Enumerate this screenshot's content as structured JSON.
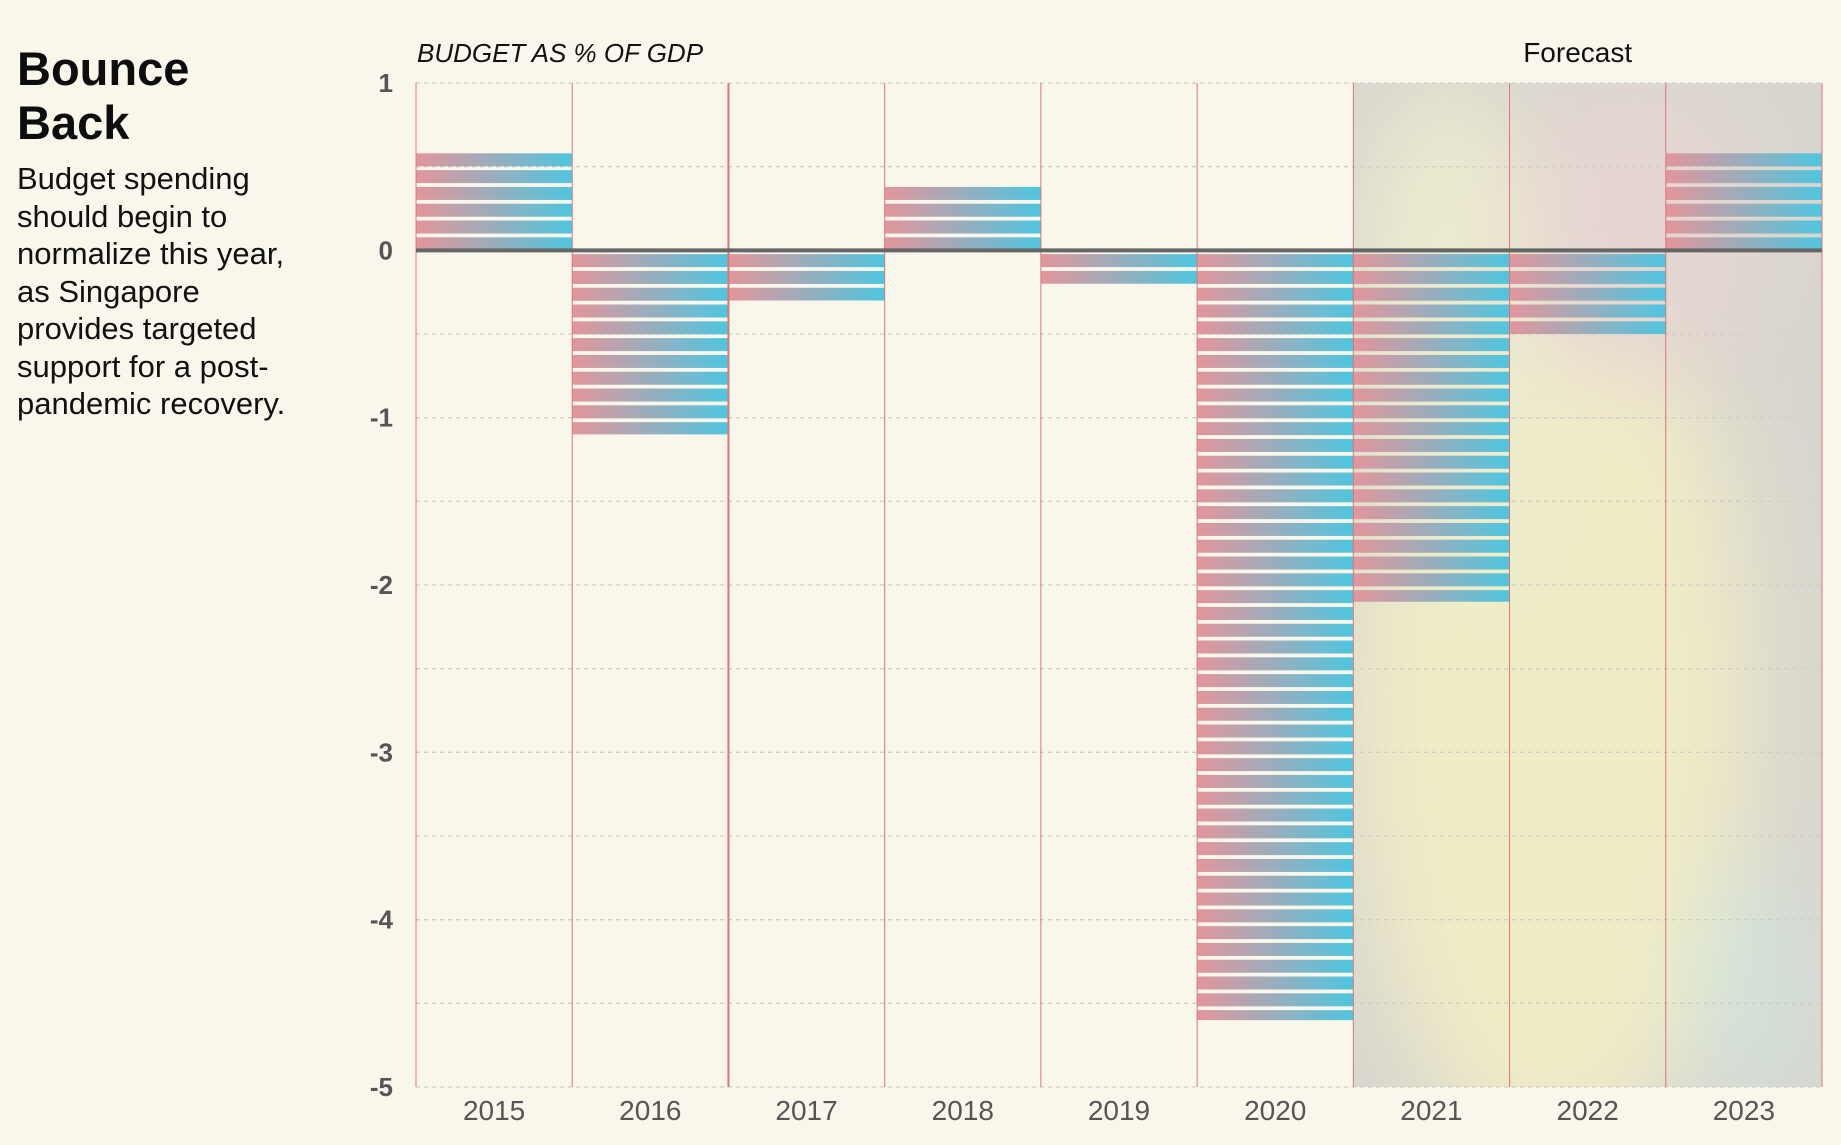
{
  "header": {
    "title": "Bounce Back",
    "subtitle": "Budget spending should begin to normalize this year, as Singapore provides targeted support for a post-pandemic recovery."
  },
  "chart_data": {
    "type": "bar",
    "ylabel": "BUDGET AS % OF GDP",
    "forecast_label": "Forecast",
    "categories": [
      "2015",
      "2016",
      "2017",
      "2018",
      "2019",
      "2020",
      "2021",
      "2022",
      "2023"
    ],
    "values": [
      0.6,
      -1.1,
      -0.3,
      0.4,
      -0.2,
      -4.6,
      -2.1,
      -0.5,
      0.6
    ],
    "forecast": [
      false,
      false,
      false,
      false,
      false,
      false,
      true,
      true,
      true
    ],
    "ylim": [
      -5,
      1
    ],
    "yticks": [
      1,
      0,
      -1,
      -2,
      -3,
      -4,
      -5
    ],
    "grid": true,
    "colors": {
      "bar_start": "#e3959b",
      "bar_end": "#4ec6e0",
      "divider": "#d9767b",
      "zero_line": "#666666",
      "grid": "#cfcfc6",
      "background": "#f9f6ec"
    }
  }
}
